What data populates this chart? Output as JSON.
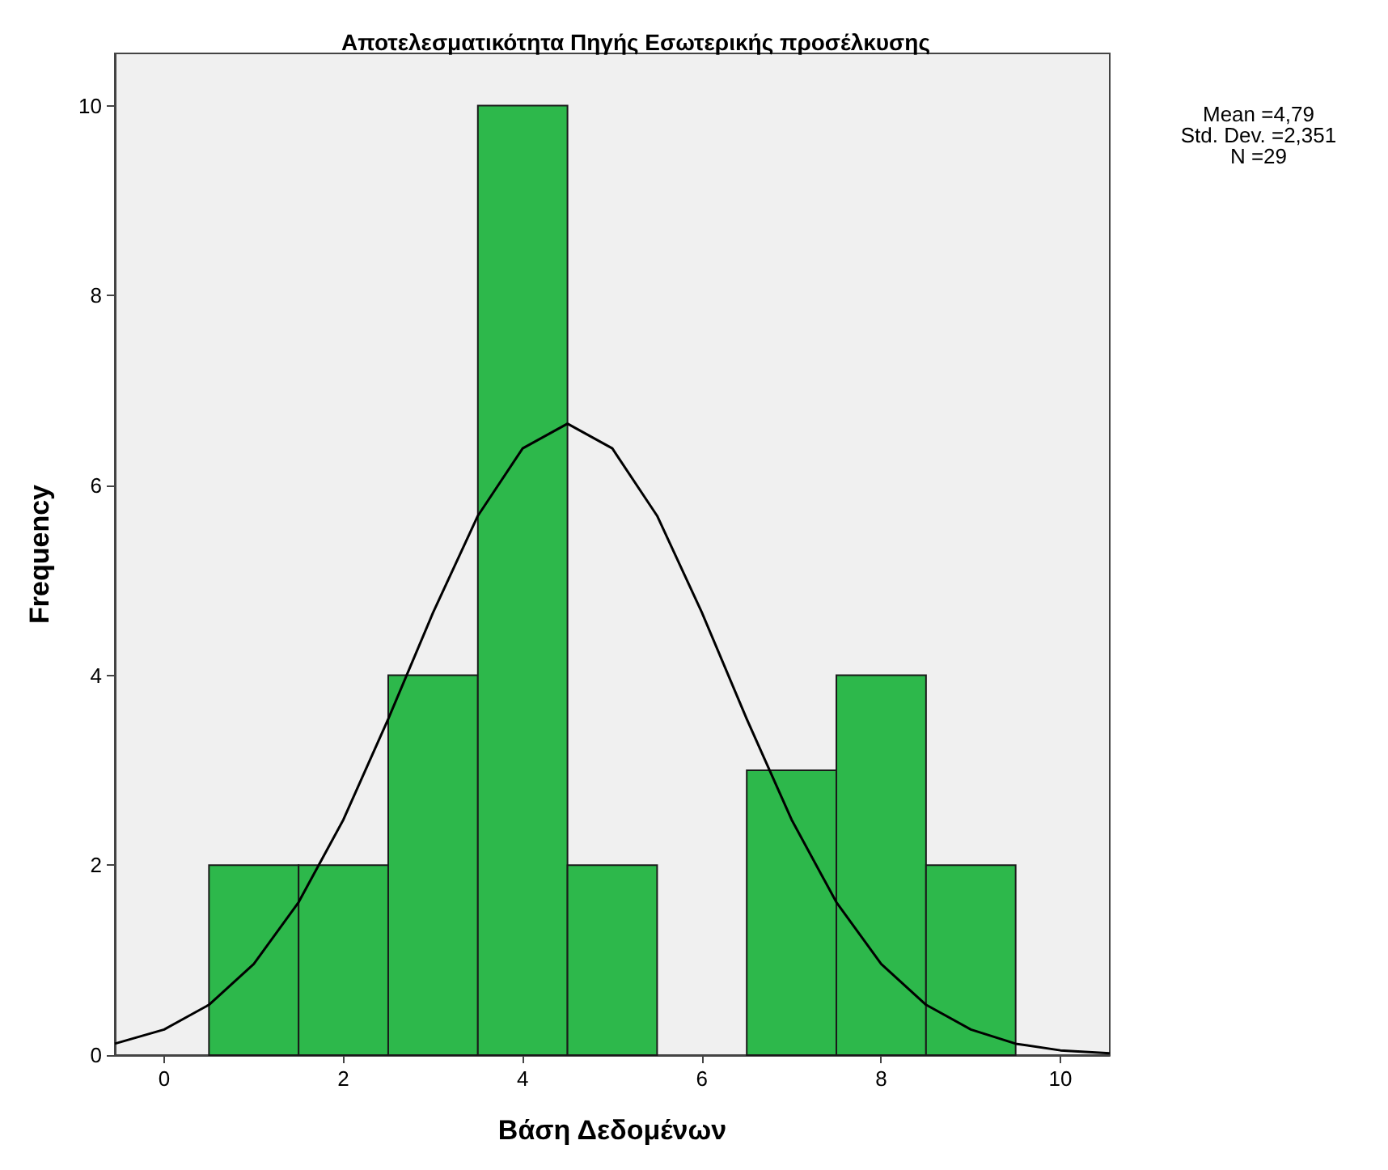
{
  "chart_data": {
    "type": "histogram",
    "title": "Αποτελεσματικότητα Πηγής Εσωτερικής προσέλκυσης",
    "xlabel": "Βάση Δεδομένων",
    "ylabel": "Frequency",
    "bins": [
      0.5,
      1.5,
      2.5,
      3.5,
      4.5,
      5.5,
      6.5,
      7.5,
      8.5,
      9.5
    ],
    "values": [
      2,
      2,
      4,
      10,
      2,
      0,
      3,
      4,
      2
    ],
    "color": "#2db84b",
    "series": [
      {
        "type": "line",
        "color": "#000000",
        "x": [
          -0.55,
          0,
          0.5,
          1,
          1.5,
          2,
          2.5,
          3,
          3.5,
          4,
          4.5,
          5,
          5.5,
          6,
          6.5,
          7,
          7.5,
          8,
          8.5,
          9,
          9.5,
          10,
          10.55
        ],
        "values": [
          0.12,
          0.27,
          0.53,
          0.96,
          1.61,
          2.48,
          3.54,
          4.66,
          5.68,
          6.39,
          6.65,
          6.39,
          5.68,
          4.66,
          3.54,
          2.48,
          1.61,
          0.96,
          0.53,
          0.27,
          0.12,
          0.05,
          0.02
        ]
      }
    ],
    "xlim": [
      -0.55,
      10.55
    ],
    "ylim": [
      0,
      10.55
    ],
    "xticks": [
      0,
      2,
      4,
      6,
      8,
      10
    ],
    "yticks": [
      0,
      2,
      4,
      6,
      8,
      10
    ],
    "grid": false,
    "marker": "none",
    "line_style": "solid",
    "annotations": [
      "Mean =4,79",
      "Std. Dev. =2,351",
      "N =29"
    ]
  }
}
